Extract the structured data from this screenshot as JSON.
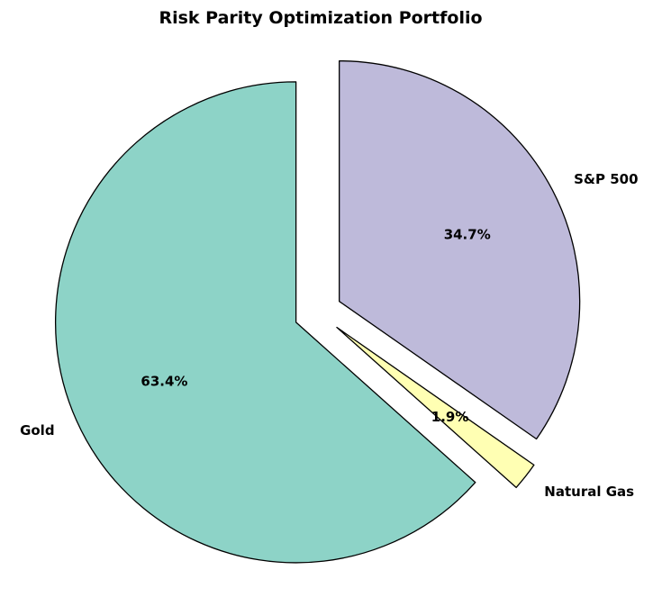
{
  "chart_data": {
    "type": "pie",
    "title": "Risk Parity Optimization Portfolio",
    "labels": [
      "S&P 500",
      "Natural Gas",
      "Gold"
    ],
    "values": [
      34.7,
      1.9,
      63.4
    ],
    "pct_labels": [
      "34.7%",
      "1.9%",
      "63.4%"
    ],
    "colors": [
      "#BEBADA",
      "#FFFFB3",
      "#8DD3C7"
    ],
    "edge_color": "#000000",
    "text_color": "#000000",
    "background_color": "#ffffff",
    "startangle": 90,
    "counterclock": false,
    "explode": [
      0.1,
      0.1,
      0.1
    ],
    "labeldistance": 1.1,
    "pctdistance": 0.6,
    "legend": "none",
    "grid": false
  }
}
